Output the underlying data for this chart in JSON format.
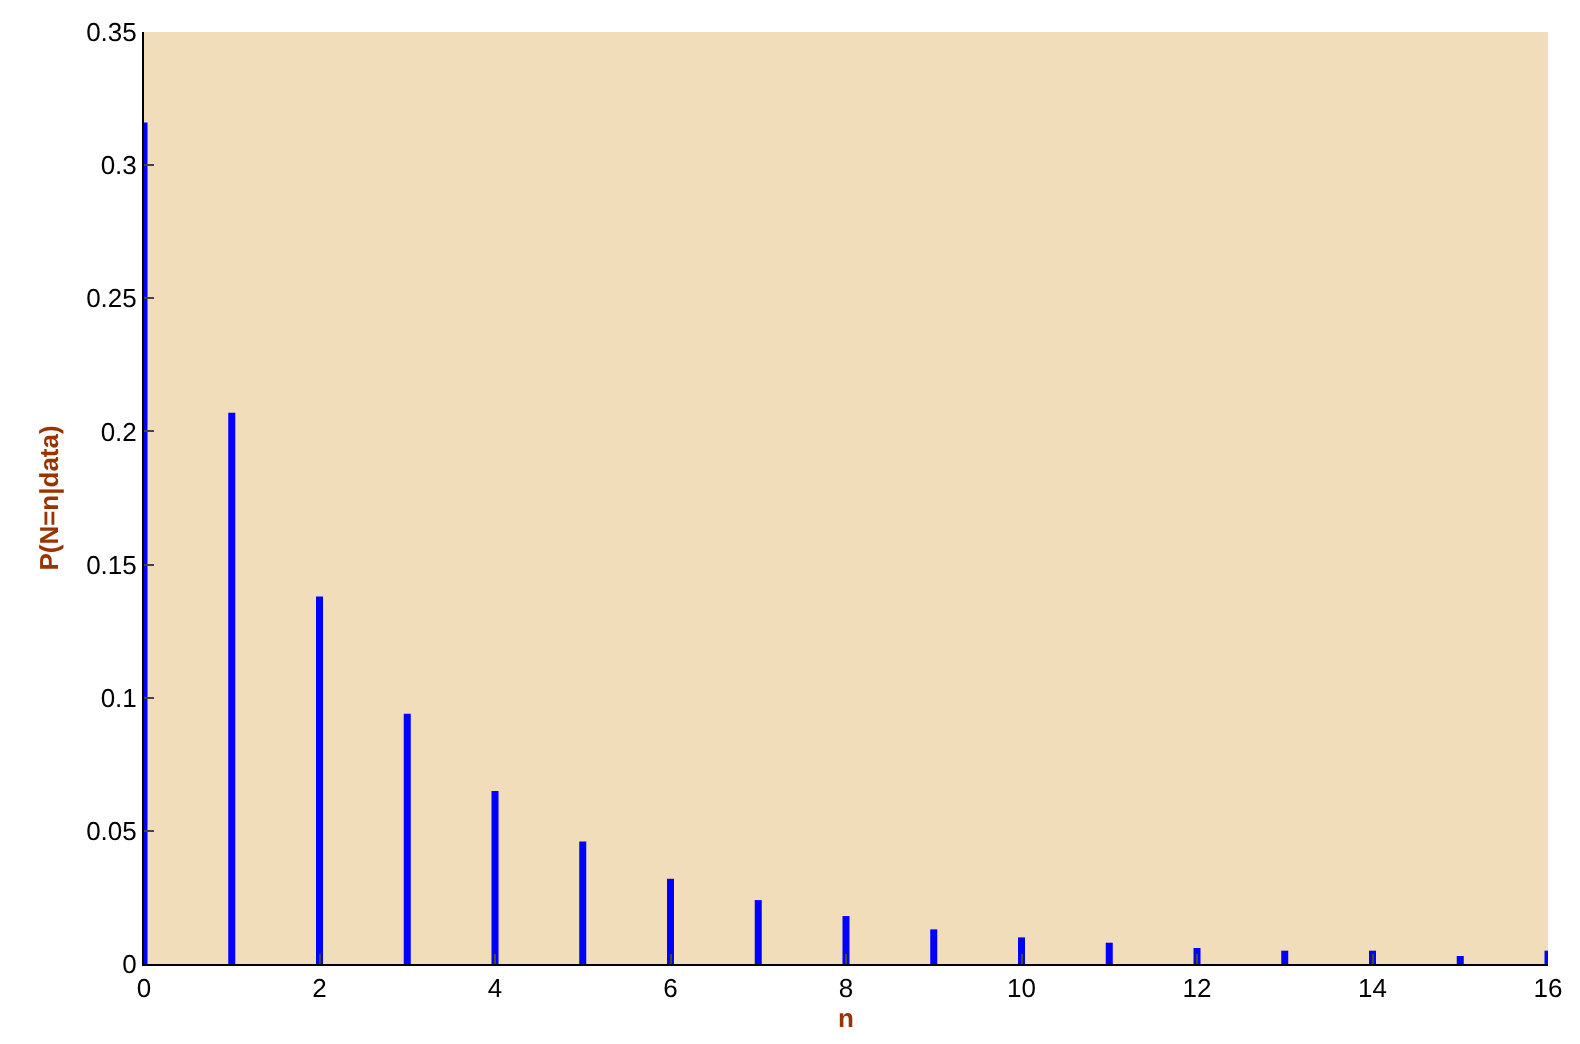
{
  "chart_data": {
    "type": "bar",
    "xlabel": "n",
    "ylabel": "P(N=n|data)",
    "x": [
      0,
      1,
      2,
      3,
      4,
      5,
      6,
      7,
      8,
      9,
      10,
      11,
      12,
      13,
      14,
      15,
      16
    ],
    "values": [
      0.316,
      0.207,
      0.138,
      0.094,
      0.065,
      0.046,
      0.032,
      0.024,
      0.018,
      0.013,
      0.01,
      0.008,
      0.006,
      0.005,
      0.005,
      0.003,
      0.005
    ],
    "color": "#0000ff",
    "xlim": [
      0,
      16
    ],
    "xticks": [
      0,
      2,
      4,
      6,
      8,
      10,
      12,
      14,
      16
    ],
    "ylim": [
      0,
      0.35
    ],
    "yticks": [
      0,
      0.05,
      0.1,
      0.15,
      0.2,
      0.25,
      0.3,
      0.35
    ],
    "grid": false,
    "legend": false
  }
}
